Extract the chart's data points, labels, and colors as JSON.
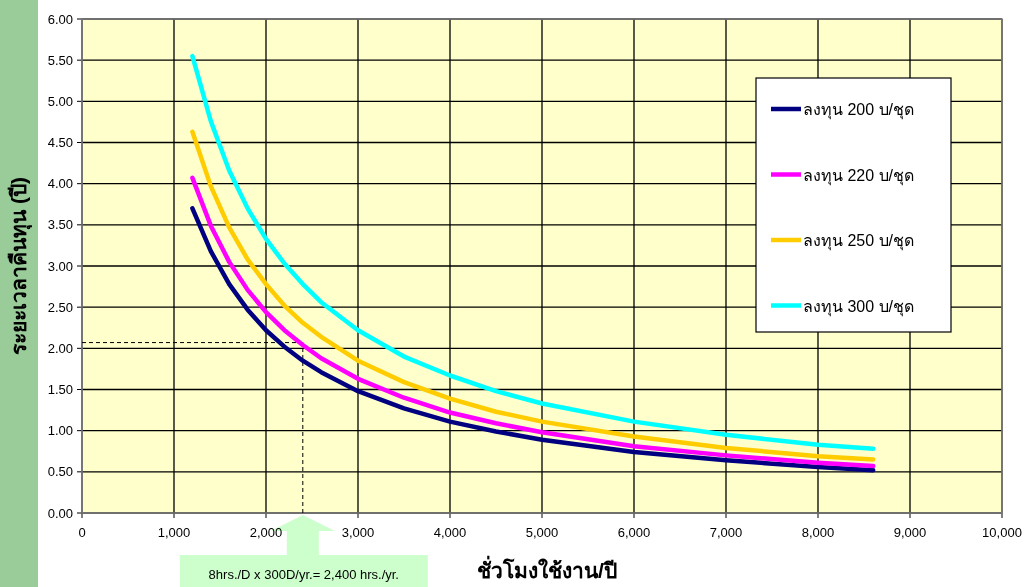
{
  "chart_data": {
    "type": "line",
    "xlabel": "ชั่วโมงใช้งาน/ปี",
    "ylabel": "ระยะเวลาคืนทุน (ปี)",
    "x": [
      1200,
      1400,
      1600,
      1800,
      2000,
      2200,
      2400,
      2600,
      3000,
      3500,
      4000,
      4500,
      5000,
      6000,
      7000,
      8000,
      8600
    ],
    "series": [
      {
        "name": "ลงทุน 200 บ/ชุด",
        "color": "#000080",
        "values": [
          3.7,
          3.18,
          2.78,
          2.47,
          2.22,
          2.02,
          1.85,
          1.71,
          1.48,
          1.27,
          1.11,
          0.99,
          0.89,
          0.74,
          0.64,
          0.56,
          0.52
        ]
      },
      {
        "name": "ลงทุน 220 บ/ชุด",
        "color": "#ff00ff",
        "values": [
          4.07,
          3.49,
          3.05,
          2.71,
          2.44,
          2.22,
          2.04,
          1.88,
          1.63,
          1.4,
          1.22,
          1.09,
          0.98,
          0.81,
          0.7,
          0.61,
          0.57
        ]
      },
      {
        "name": "ลงทุน 250 บ/ชุด",
        "color": "#ffcc00",
        "values": [
          4.63,
          3.97,
          3.47,
          3.08,
          2.78,
          2.52,
          2.31,
          2.14,
          1.85,
          1.59,
          1.39,
          1.23,
          1.11,
          0.93,
          0.79,
          0.69,
          0.65
        ]
      },
      {
        "name": "ลงทุน 300 บ/ชุด",
        "color": "#00ffff",
        "values": [
          5.55,
          4.76,
          4.16,
          3.7,
          3.33,
          3.03,
          2.78,
          2.56,
          2.22,
          1.9,
          1.67,
          1.48,
          1.33,
          1.11,
          0.95,
          0.83,
          0.78
        ]
      }
    ],
    "xlim": [
      0,
      10000
    ],
    "ylim": [
      0,
      6
    ],
    "xticks": [
      0,
      {
        "value": 1000,
        "label": "1,000"
      },
      {
        "value": 2000,
        "label": "2,000"
      },
      {
        "value": 3000,
        "label": "3,000"
      },
      {
        "value": 4000,
        "label": "4,000"
      },
      {
        "value": 5000,
        "label": "5,000"
      },
      {
        "value": 6000,
        "label": "6,000"
      },
      {
        "value": 7000,
        "label": "7,000"
      },
      {
        "value": 8000,
        "label": "8,000"
      },
      {
        "value": 9000,
        "label": "9,000"
      },
      {
        "value": 10000,
        "label": "10,000"
      }
    ],
    "yticks": [
      {
        "value": 0,
        "label": "0.00"
      },
      {
        "value": 0.5,
        "label": "0.50"
      },
      {
        "value": 1,
        "label": "1.00"
      },
      {
        "value": 1.5,
        "label": "1.50"
      },
      {
        "value": 2,
        "label": "2.00"
      },
      {
        "value": 2.5,
        "label": "2.50"
      },
      {
        "value": 3,
        "label": "3.00"
      },
      {
        "value": 3.5,
        "label": "3.50"
      },
      {
        "value": 4,
        "label": "4.00"
      },
      {
        "value": 4.5,
        "label": "4.50"
      },
      {
        "value": 5,
        "label": "5.00"
      },
      {
        "value": 5.5,
        "label": "5.50"
      },
      {
        "value": 6,
        "label": "6.00"
      }
    ],
    "ref_lines": [
      {
        "axis": "y",
        "value": 2.07,
        "color": "#000000",
        "line_style": "dashed"
      },
      {
        "axis": "x",
        "value": 2400,
        "color": "#000000",
        "line_style": "dashed"
      }
    ],
    "annotations": [
      "8hrs./D x 300D/yr.= 2,400 hrs./yr."
    ],
    "grid": true,
    "legend": "top right",
    "marker": "none",
    "line_style": "solid"
  }
}
